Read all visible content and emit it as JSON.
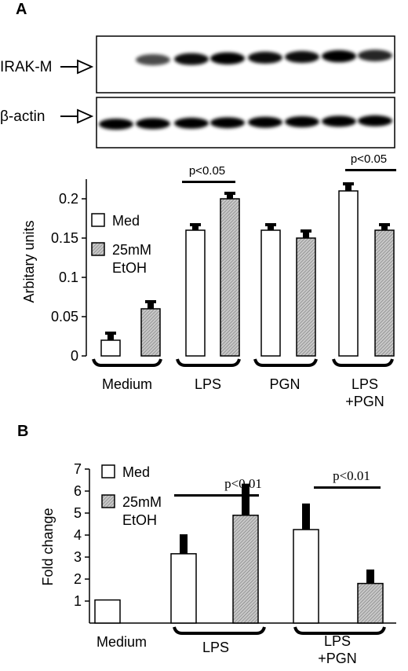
{
  "panel_a": {
    "label": "A",
    "blot": {
      "rows": [
        {
          "name": "IRAK-M",
          "lanes": [
            0.05,
            0.55,
            0.8,
            0.85,
            0.8,
            0.8,
            0.85,
            0.7
          ]
        },
        {
          "name": "β-actin",
          "lanes": [
            0.9,
            0.9,
            0.9,
            0.92,
            0.85,
            0.85,
            0.85,
            0.9
          ]
        }
      ]
    },
    "chart_data": {
      "type": "bar",
      "ylabel": "Arbitary units",
      "ylim": [
        0,
        0.2
      ],
      "yticks": [
        "0",
        "0.05",
        "0.1",
        "0.15",
        "0.2"
      ],
      "categories": [
        "Medium",
        "LPS",
        "PGN",
        "LPS\n+PGN"
      ],
      "series": [
        {
          "name": "Med",
          "values": [
            0.02,
            0.16,
            0.16,
            0.21
          ],
          "errors": [
            0.01,
            0.008,
            0.008,
            0.01
          ]
        },
        {
          "name": "25mM\nEtOH",
          "values": [
            0.06,
            0.2,
            0.15,
            0.16
          ],
          "errors": [
            0.01,
            0.008,
            0.01,
            0.008
          ]
        }
      ],
      "annotations": [
        {
          "text": "p<0.05",
          "group": 1
        },
        {
          "text": "p<0.05",
          "group": 3
        }
      ],
      "legend": "top-left",
      "grid": false
    }
  },
  "panel_b": {
    "label": "B",
    "chart_data": {
      "type": "bar",
      "ylabel": "Fold change",
      "ylim": [
        0,
        7
      ],
      "yticks": [
        "1",
        "2",
        "3",
        "4",
        "5",
        "6",
        "7"
      ],
      "categories": [
        "Medium",
        "LPS",
        "LPS\n+PGN"
      ],
      "series": [
        {
          "name": "Med",
          "values": [
            1.05,
            3.15,
            4.25
          ],
          "errors": [
            null,
            0.85,
            1.15
          ]
        },
        {
          "name": "25mM\nEtOH",
          "values": [
            null,
            4.9,
            1.8
          ],
          "errors": [
            null,
            1.4,
            0.6
          ]
        }
      ],
      "annotations": [
        {
          "text": "p<0.01",
          "group": 1
        },
        {
          "text": "p<0.01",
          "group": 2
        }
      ],
      "legend": "top-left",
      "grid": false
    }
  }
}
